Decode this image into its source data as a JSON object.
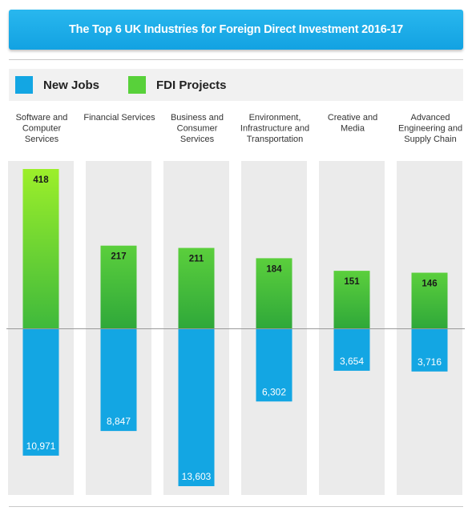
{
  "header": {
    "title": "The Top 6 UK Industries for Foreign Direct Investment 2016-17"
  },
  "legend": {
    "items": [
      {
        "label": "New Jobs",
        "color": "#13a6e3"
      },
      {
        "label": "FDI Projects",
        "color": "#58d13a"
      }
    ]
  },
  "chart_data": {
    "type": "bar",
    "title": "The Top 6 UK Industries for Foreign Direct Investment 2016-17",
    "categories": [
      [
        "Software and",
        "Computer",
        "Services"
      ],
      [
        "Financial Services"
      ],
      [
        "Business and",
        "Consumer",
        "Services"
      ],
      [
        "Environment,",
        "Infrastructure and",
        "Transportation"
      ],
      [
        "Creative and",
        "Media"
      ],
      [
        "Advanced",
        "Engineering and",
        "Supply Chain"
      ]
    ],
    "series": [
      {
        "name": "FDI Projects",
        "values": [
          418,
          217,
          211,
          184,
          151,
          146
        ],
        "labels": [
          "418",
          "217",
          "211",
          "184",
          "151",
          "146"
        ],
        "color": "#3fb93c"
      },
      {
        "name": "New Jobs",
        "values": [
          10971,
          8847,
          13603,
          6302,
          3654,
          3716
        ],
        "labels": [
          "10,971",
          "8,847",
          "13,603",
          "6,302",
          "3,654",
          "3,716"
        ],
        "color": "#13a6e3"
      }
    ],
    "highlight_color": "#7fe22b",
    "legend_position": "top-left",
    "grid": false
  }
}
